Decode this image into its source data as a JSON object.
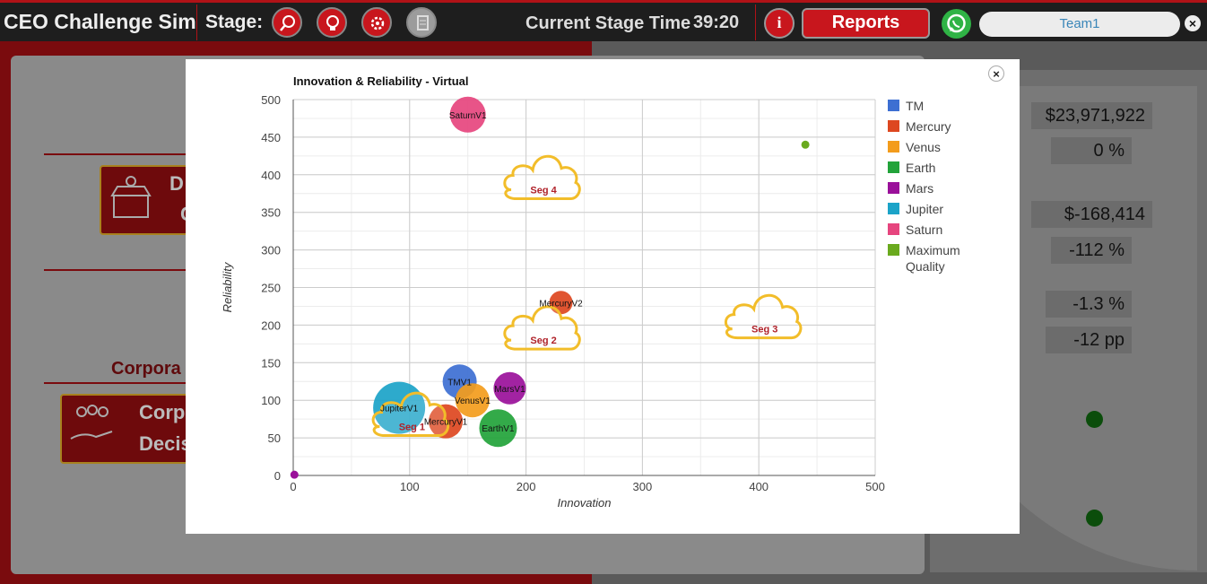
{
  "app": {
    "title": "CEO Challenge Sim",
    "stage_label": "Stage:",
    "stage_icons": [
      "search-icon",
      "bulb-gear-icon",
      "cog-wrench-icon",
      "document-icon"
    ],
    "stage_time_label": "Current Stage Time",
    "stage_time": "39:20",
    "info_label": "i",
    "reports_label": "Reports",
    "team": "Team1",
    "close_label": "×"
  },
  "background": {
    "card1_text": [
      "D",
      "C"
    ],
    "corp_heading": "Corpora",
    "card2_text": [
      "Corp",
      "Decis"
    ],
    "values": [
      "$23,971,922",
      "0 %",
      "$-168,414",
      "-112 %",
      "-1.3 %",
      "-12 pp"
    ]
  },
  "modal": {
    "close_label": "×"
  },
  "chart_data": {
    "type": "scatter",
    "title": "Innovation & Reliability - Virtual",
    "xlabel": "Innovation",
    "ylabel": "Reliability",
    "xlim": [
      0,
      500
    ],
    "ylim": [
      0,
      500
    ],
    "xticks": [
      0,
      100,
      200,
      300,
      400,
      500
    ],
    "yticks": [
      0,
      50,
      100,
      150,
      200,
      250,
      300,
      350,
      400,
      450,
      500
    ],
    "grid": true,
    "legend_position": "right",
    "legend": [
      {
        "name": "TM",
        "color": "#3d6fd2"
      },
      {
        "name": "Mercury",
        "color": "#dd4720"
      },
      {
        "name": "Venus",
        "color": "#f39c1c"
      },
      {
        "name": "Earth",
        "color": "#22a33a"
      },
      {
        "name": "Mars",
        "color": "#9a109a"
      },
      {
        "name": "Jupiter",
        "color": "#1ba3c8"
      },
      {
        "name": "Saturn",
        "color": "#e6457e"
      },
      {
        "name": "Maximum Quality",
        "color": "#6aaa1e"
      }
    ],
    "bubbles": [
      {
        "label": "SaturnV1",
        "series": "Saturn",
        "x": 150,
        "y": 480,
        "r": 20,
        "color": "#e6457e"
      },
      {
        "label": "MercuryV2",
        "series": "Mercury",
        "x": 230,
        "y": 230,
        "r": 13,
        "color": "#dd4720"
      },
      {
        "label": "TMV1",
        "series": "TM",
        "x": 143,
        "y": 125,
        "r": 19,
        "color": "#3d6fd2"
      },
      {
        "label": "MarsV1",
        "series": "Mars",
        "x": 186,
        "y": 116,
        "r": 18,
        "color": "#9a109a"
      },
      {
        "label": "VenusV1",
        "series": "Venus",
        "x": 154,
        "y": 100,
        "r": 19,
        "color": "#f39c1c"
      },
      {
        "label": "JupiterV1",
        "series": "Jupiter",
        "x": 91,
        "y": 90,
        "r": 29,
        "color": "#1ba3c8"
      },
      {
        "label": "MercuryV1",
        "series": "Mercury",
        "x": 131,
        "y": 72,
        "r": 19,
        "color": "#dd4720"
      },
      {
        "label": "EarthV1",
        "series": "Earth",
        "x": 176,
        "y": 63,
        "r": 21,
        "color": "#22a33a"
      }
    ],
    "points": [
      {
        "series": "Maximum Quality",
        "x": 440,
        "y": 440,
        "color": "#6aaa1e"
      },
      {
        "series": "Mars",
        "x": 1,
        "y": 1,
        "color": "#9a109a"
      }
    ],
    "segments": [
      {
        "label": "Seg 4",
        "x": 215,
        "y": 380
      },
      {
        "label": "Seg 2",
        "x": 215,
        "y": 180
      },
      {
        "label": "Seg 3",
        "x": 405,
        "y": 195
      },
      {
        "label": "Seg 1",
        "x": 102,
        "y": 65
      }
    ],
    "segment_color": "#f2bd2a",
    "segment_text_color": "#b0222a"
  }
}
